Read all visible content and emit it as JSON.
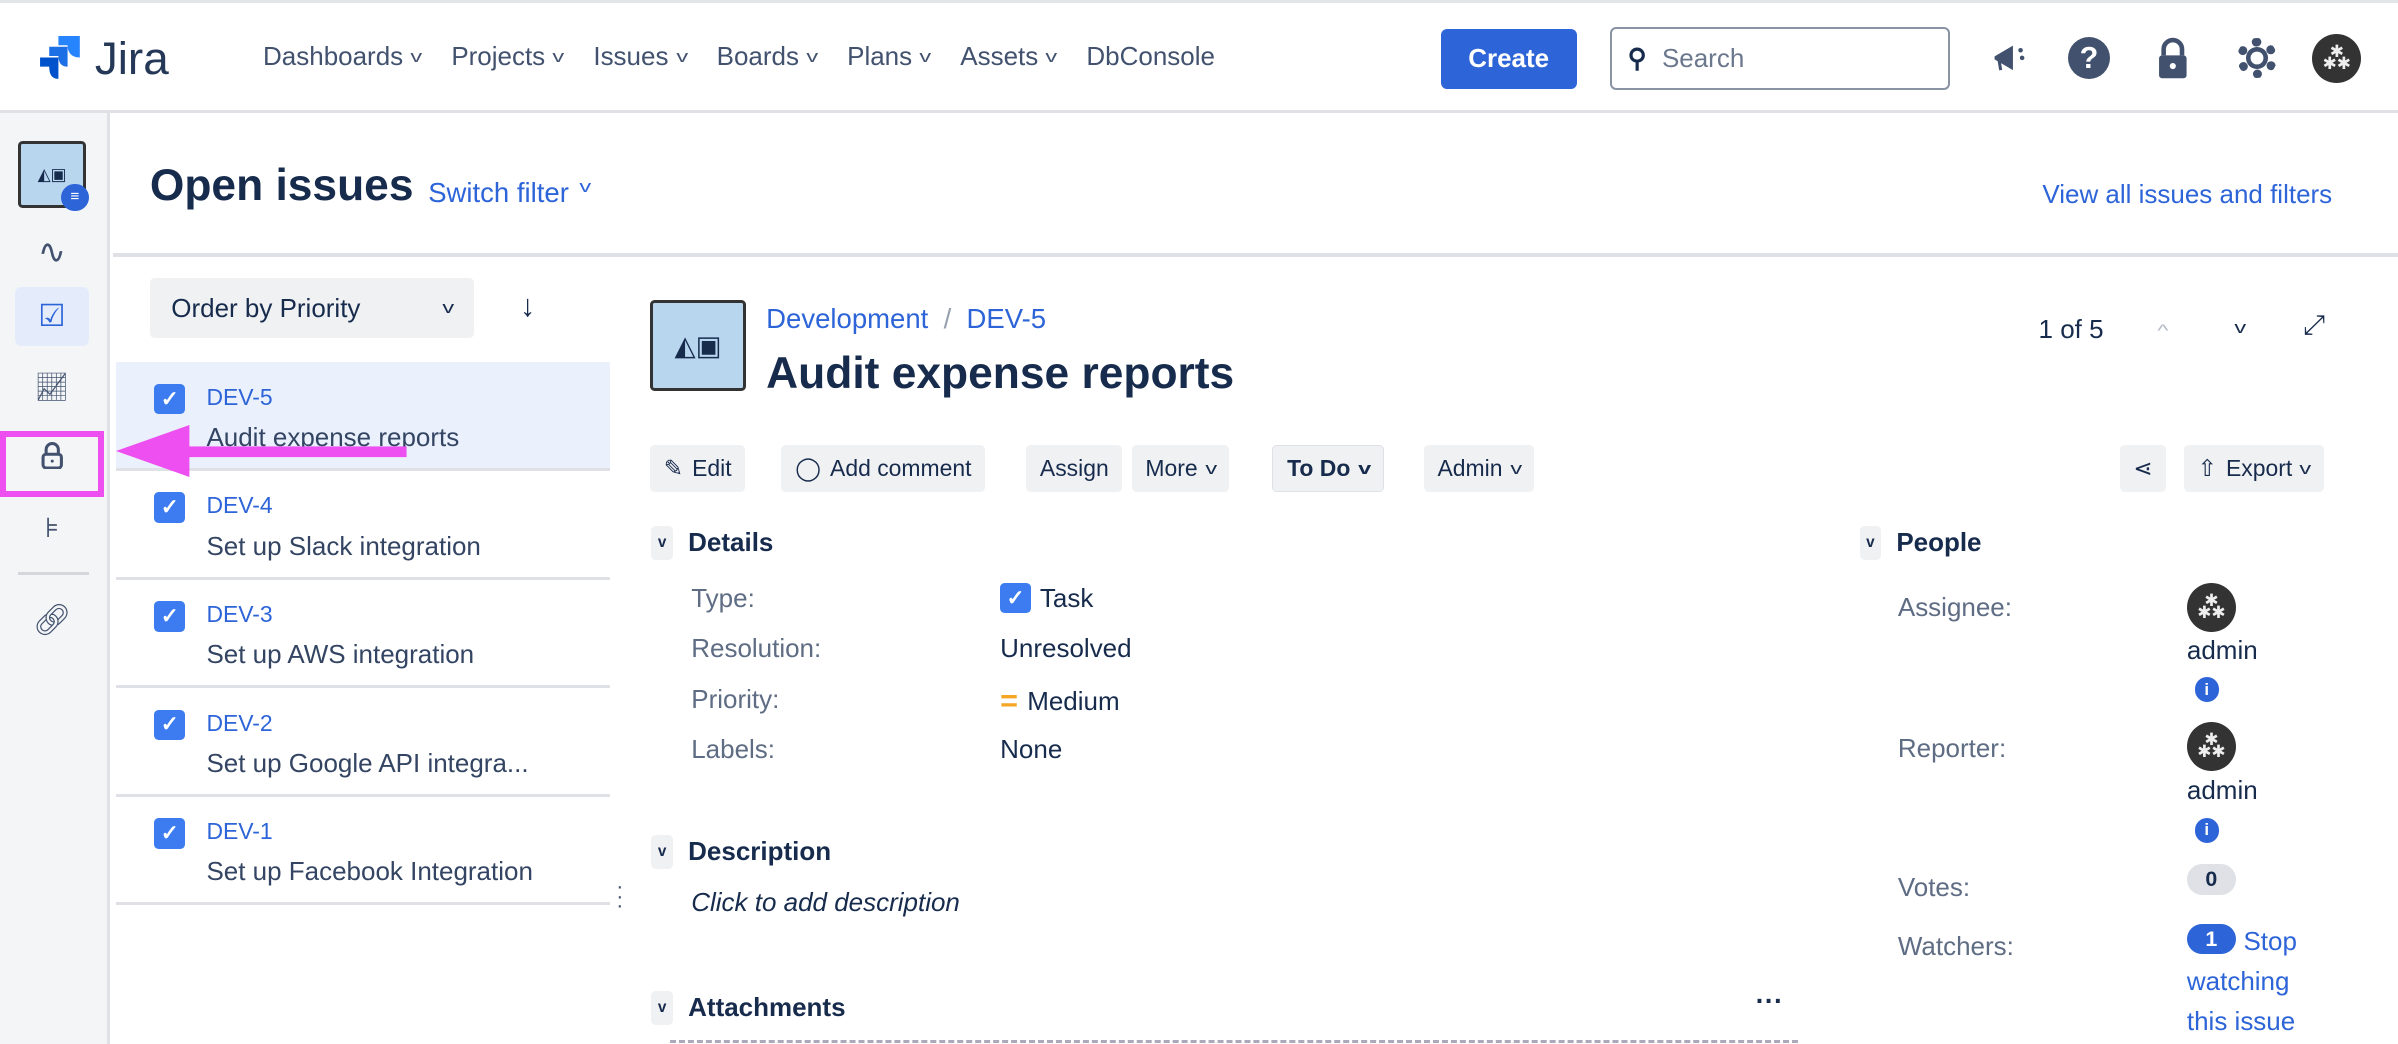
{
  "app": {
    "name": "Jira",
    "brand_color": "#2d64d8"
  },
  "nav": {
    "items": [
      {
        "label": "Dashboards",
        "dropdown": true
      },
      {
        "label": "Projects",
        "dropdown": true
      },
      {
        "label": "Issues",
        "dropdown": true
      },
      {
        "label": "Boards",
        "dropdown": true
      },
      {
        "label": "Plans",
        "dropdown": true
      },
      {
        "label": "Assets",
        "dropdown": true
      },
      {
        "label": "DbConsole",
        "dropdown": false
      }
    ],
    "create_label": "Create",
    "search_placeholder": "Search",
    "icons": [
      "megaphone-icon",
      "help-icon",
      "lock-icon",
      "gear-icon",
      "avatar"
    ]
  },
  "sidebar": {
    "icons": [
      "project-avatar",
      "activity-icon",
      "issues-icon",
      "reports-icon",
      "lock-icon",
      "hierarchy-icon",
      "link-icon"
    ],
    "highlighted": "lock-icon",
    "highlight_color": "#ee4ff0"
  },
  "header": {
    "title": "Open issues",
    "switch_filter": "Switch filter",
    "view_all": "View all issues and filters"
  },
  "list": {
    "order_label": "Order by Priority",
    "items": [
      {
        "key": "DEV-5",
        "summary": "Audit expense reports",
        "selected": true
      },
      {
        "key": "DEV-4",
        "summary": "Set up Slack integration"
      },
      {
        "key": "DEV-3",
        "summary": "Set up AWS integration"
      },
      {
        "key": "DEV-2",
        "summary": "Set up Google API integra..."
      },
      {
        "key": "DEV-1",
        "summary": "Set up Facebook Integration"
      }
    ]
  },
  "issue": {
    "project": "Development",
    "key": "DEV-5",
    "title": "Audit expense reports",
    "pager": "1 of 5",
    "actions": {
      "edit": "Edit",
      "comment": "Add comment",
      "assign": "Assign",
      "more": "More",
      "status": "To Do",
      "admin": "Admin",
      "export": "Export"
    },
    "details": {
      "heading": "Details",
      "fields": [
        {
          "label": "Type:",
          "value": "Task"
        },
        {
          "label": "Resolution:",
          "value": "Unresolved"
        },
        {
          "label": "Priority:",
          "value": "Medium"
        },
        {
          "label": "Labels:",
          "value": "None"
        }
      ],
      "priority_color": "#f5a623"
    },
    "description": {
      "heading": "Description",
      "placeholder": "Click to add description"
    },
    "attachments": {
      "heading": "Attachments"
    },
    "people": {
      "heading": "People",
      "assignee_label": "Assignee:",
      "assignee": "admin",
      "reporter_label": "Reporter:",
      "reporter": "admin",
      "votes_label": "Votes:",
      "votes": "0",
      "watchers_label": "Watchers:",
      "watchers": "1",
      "watch_link": "Stop watching this issue"
    }
  }
}
